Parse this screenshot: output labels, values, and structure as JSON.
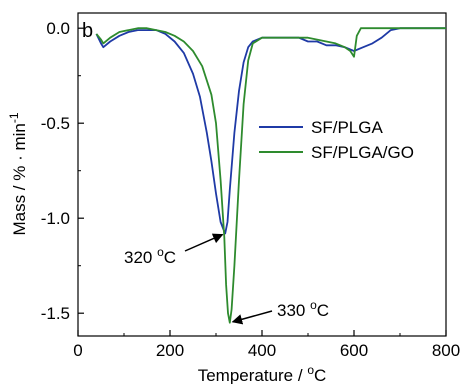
{
  "chart_data": {
    "type": "line",
    "panel_label": "b",
    "xlabel": "Temperature / °C",
    "xlabel_main": "Temperature / ",
    "xlabel_unit_sup": "o",
    "xlabel_unit": "C",
    "ylabel": "Mass / % · min-1",
    "ylabel_main": "Mass / % · min",
    "ylabel_sup": "-1",
    "xlim": [
      0,
      800
    ],
    "ylim": [
      -1.62,
      0.08
    ],
    "xticks": [
      0,
      200,
      400,
      600,
      800
    ],
    "yticks": [
      0.0,
      -0.5,
      -1.0,
      -1.5
    ],
    "xtick_labels": [
      "0",
      "200",
      "400",
      "600",
      "800"
    ],
    "ytick_labels": [
      "0.0",
      "-0.5",
      "-1.0",
      "-1.5"
    ],
    "grid": false,
    "legend_position": "right",
    "series": [
      {
        "name": "SF/PLGA",
        "color": "#1f3aa6",
        "x": [
          40,
          50,
          55,
          70,
          90,
          110,
          130,
          150,
          170,
          190,
          210,
          230,
          250,
          265,
          280,
          290,
          300,
          310,
          318,
          320,
          325,
          330,
          340,
          350,
          360,
          370,
          380,
          400,
          420,
          440,
          460,
          480,
          500,
          520,
          540,
          560,
          580,
          600,
          620,
          640,
          660,
          680,
          700,
          720,
          740,
          760,
          780,
          800
        ],
        "y": [
          -0.03,
          -0.08,
          -0.1,
          -0.07,
          -0.04,
          -0.02,
          -0.01,
          -0.01,
          -0.01,
          -0.03,
          -0.07,
          -0.13,
          -0.24,
          -0.36,
          -0.55,
          -0.7,
          -0.87,
          -1.02,
          -1.07,
          -1.08,
          -1.02,
          -0.85,
          -0.55,
          -0.33,
          -0.18,
          -0.1,
          -0.07,
          -0.05,
          -0.05,
          -0.05,
          -0.05,
          -0.05,
          -0.07,
          -0.07,
          -0.09,
          -0.09,
          -0.1,
          -0.12,
          -0.1,
          -0.08,
          -0.05,
          -0.01,
          0.0,
          0.0,
          0.0,
          0.0,
          0.0,
          0.0
        ]
      },
      {
        "name": "SF/PLGA/GO",
        "color": "#2e8b2e",
        "x": [
          40,
          50,
          55,
          70,
          90,
          110,
          130,
          150,
          170,
          190,
          210,
          230,
          250,
          270,
          290,
          300,
          310,
          318,
          322,
          326,
          330,
          334,
          340,
          350,
          360,
          370,
          380,
          400,
          420,
          440,
          460,
          480,
          500,
          520,
          540,
          560,
          580,
          592,
          600,
          606,
          615,
          640,
          680,
          720,
          760,
          800
        ],
        "y": [
          -0.03,
          -0.06,
          -0.08,
          -0.05,
          -0.02,
          -0.01,
          0.0,
          0.0,
          -0.01,
          -0.02,
          -0.04,
          -0.07,
          -0.12,
          -0.2,
          -0.35,
          -0.5,
          -0.8,
          -1.1,
          -1.35,
          -1.5,
          -1.55,
          -1.48,
          -1.25,
          -0.8,
          -0.4,
          -0.17,
          -0.08,
          -0.05,
          -0.05,
          -0.05,
          -0.05,
          -0.05,
          -0.05,
          -0.06,
          -0.07,
          -0.08,
          -0.1,
          -0.12,
          -0.15,
          -0.04,
          0.0,
          0.0,
          0.0,
          0.0,
          0.0,
          0.0
        ]
      }
    ],
    "annotations": [
      {
        "name": "peak-sf-plga",
        "text_main": "320 ",
        "text_sup": "o",
        "text_unit": "C",
        "point": [
          320,
          -1.08
        ]
      },
      {
        "name": "peak-sf-plga-go",
        "text_main": "330 ",
        "text_sup": "o",
        "text_unit": "C",
        "point": [
          330,
          -1.55
        ]
      }
    ]
  }
}
